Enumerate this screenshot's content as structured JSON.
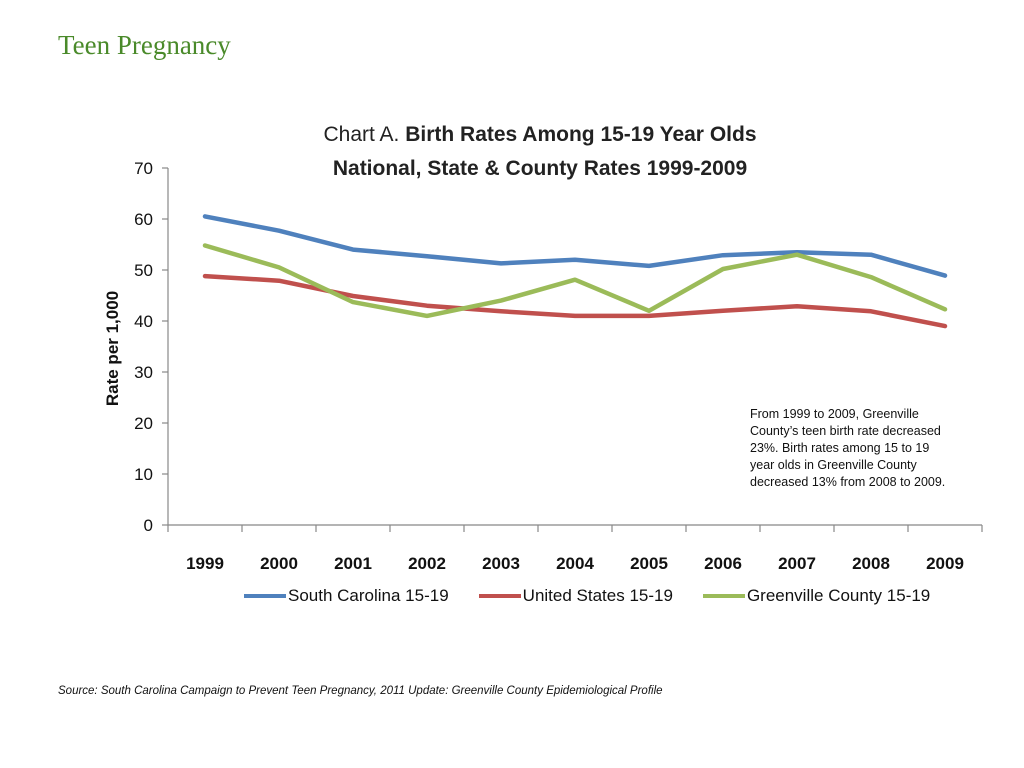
{
  "slide": {
    "title": "Teen Pregnancy",
    "annotation": "From 1999 to 2009, Greenville County’s teen birth rate decreased 23%.  Birth rates among 15 to 19 year olds in Greenville County decreased 13% from 2008 to 2009.",
    "source": "Source:  South Carolina Campaign to Prevent Teen Pregnancy, 2011 Update: Greenville County Epidemiological Profile"
  },
  "chart_data": {
    "type": "line",
    "title_prefix": "Chart A.",
    "title_rest": "Birth Rates Among 15-19 Year Olds",
    "subtitle": "National, State & County Rates 1999-2009",
    "xlabel": "",
    "ylabel": "Rate per 1,000",
    "ylim": [
      0,
      70
    ],
    "yticks": [
      0,
      10,
      20,
      30,
      40,
      50,
      60,
      70
    ],
    "grid": false,
    "legend_position": "bottom",
    "categories": [
      "1999",
      "2000",
      "2001",
      "2002",
      "2003",
      "2004",
      "2005",
      "2006",
      "2007",
      "2008",
      "2009"
    ],
    "series": [
      {
        "name": "South Carolina 15-19",
        "color": "#4f81bd",
        "values": [
          60.5,
          57.7,
          54.0,
          52.7,
          51.3,
          52.0,
          50.8,
          52.9,
          53.5,
          53.0,
          48.9
        ]
      },
      {
        "name": "United States 15-19",
        "color": "#c0504d",
        "values": [
          48.8,
          47.9,
          44.9,
          43.0,
          41.9,
          41.0,
          41.0,
          42.0,
          42.9,
          41.9,
          39.0
        ]
      },
      {
        "name": "Greenville County 15-19",
        "color": "#9bbb59",
        "values": [
          54.8,
          50.5,
          43.7,
          41.0,
          44.0,
          48.1,
          42.0,
          50.2,
          53.0,
          48.6,
          42.3
        ]
      }
    ]
  }
}
